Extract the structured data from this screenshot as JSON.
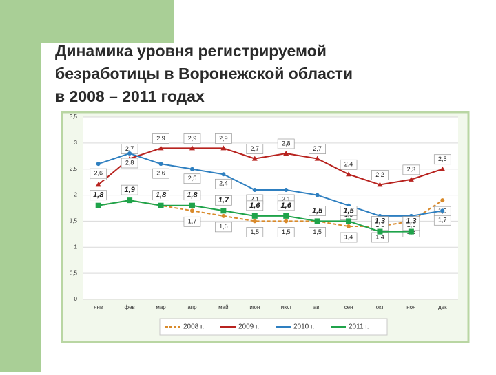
{
  "chart_data": {
    "type": "line",
    "title": [
      "Динамика уровня регистрируемой",
      "безработицы в Воронежской области",
      "в 2008 – 2011 годах"
    ],
    "categories": [
      "янв",
      "фев",
      "мар",
      "апр",
      "май",
      "июн",
      "июл",
      "авг",
      "сен",
      "окт",
      "ноя",
      "дек"
    ],
    "series": [
      {
        "name": "2008 г.",
        "color": "#d98a2b",
        "dashed": true,
        "values": [
          1.8,
          1.9,
          1.8,
          1.7,
          1.6,
          1.5,
          1.5,
          1.5,
          1.4,
          1.4,
          1.5,
          1.9
        ],
        "value_labels": [
          null,
          null,
          null,
          "1,7",
          "1,6",
          "1,5",
          "1,5",
          "1,5",
          "1,4",
          "1,4",
          "1,5",
          "1,9"
        ]
      },
      {
        "name": "2009 г.",
        "color": "#b8231f",
        "values": [
          2.2,
          2.7,
          2.9,
          2.9,
          2.9,
          2.7,
          2.8,
          2.7,
          2.4,
          2.2,
          2.3,
          2.5
        ],
        "value_labels": [
          "2,2",
          "2,7",
          "2,9",
          "2,9",
          "2,9",
          "2,7",
          "2,8",
          "2,7",
          "2,4",
          "2,2",
          "2,3",
          "2,5"
        ]
      },
      {
        "name": "2010 г.",
        "color": "#2e7fc0",
        "values": [
          2.6,
          2.8,
          2.6,
          2.5,
          2.4,
          2.1,
          2.1,
          2,
          1.8,
          1.6,
          1.6,
          1.7
        ],
        "value_labels": [
          "2,6",
          "2,8",
          "2,6",
          "2,5",
          "2,4",
          "2,1",
          "2,1",
          null,
          "1,8",
          "1,6",
          "1,6",
          "1,7"
        ]
      },
      {
        "name": "2011 г.",
        "color": "#1fa34a",
        "bold_labels": true,
        "values": [
          1.8,
          1.9,
          1.8,
          1.8,
          1.7,
          1.6,
          1.6,
          1.5,
          1.5,
          1.3,
          1.3,
          null
        ],
        "value_labels": [
          "1,8",
          "1,9",
          "1,8",
          "1,8",
          "1,7",
          "1,6",
          "1,6",
          "1,5",
          "1,5",
          "1,3",
          "1,3",
          null
        ]
      }
    ],
    "ylim": [
      0,
      3.5
    ],
    "yticks": [
      0,
      {
        "value": 0.5,
        "label": "0,5"
      },
      1,
      {
        "value": 1.5,
        "label": "1,5"
      },
      2,
      {
        "value": 2.5,
        "label": "2,5"
      },
      3,
      {
        "value": 3.5,
        "label": "3,5"
      }
    ],
    "grid": true
  }
}
